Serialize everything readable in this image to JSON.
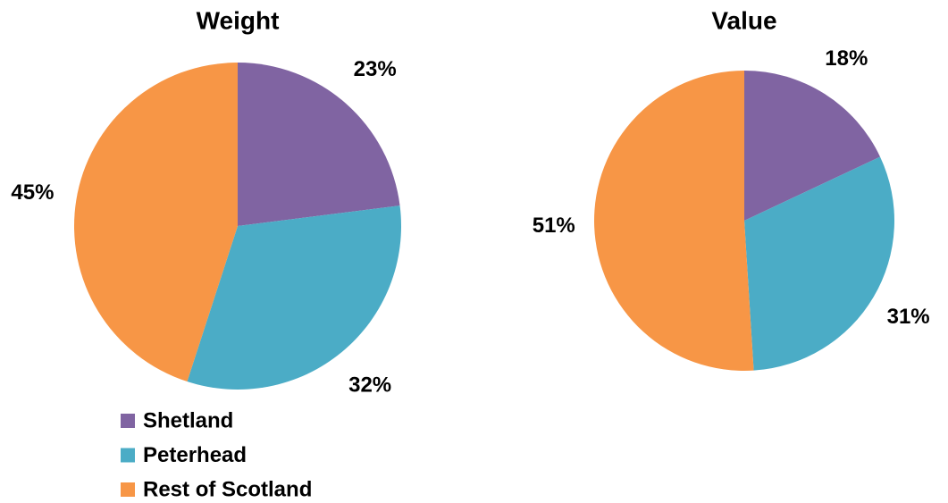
{
  "chart_data": [
    {
      "type": "pie",
      "title": "Weight",
      "categories": [
        "Shetland",
        "Peterhead",
        "Rest of Scotland"
      ],
      "values": [
        23,
        32,
        45
      ],
      "value_labels": [
        "23%",
        "32%",
        "45%"
      ],
      "colors": [
        "#8064a2",
        "#4bacc6",
        "#f79646"
      ]
    },
    {
      "type": "pie",
      "title": "Value",
      "categories": [
        "Shetland",
        "Peterhead",
        "Rest of Scotland"
      ],
      "values": [
        18,
        31,
        51
      ],
      "value_labels": [
        "18%",
        "31%",
        "51%"
      ],
      "colors": [
        "#8064a2",
        "#4bacc6",
        "#f79646"
      ]
    }
  ]
}
